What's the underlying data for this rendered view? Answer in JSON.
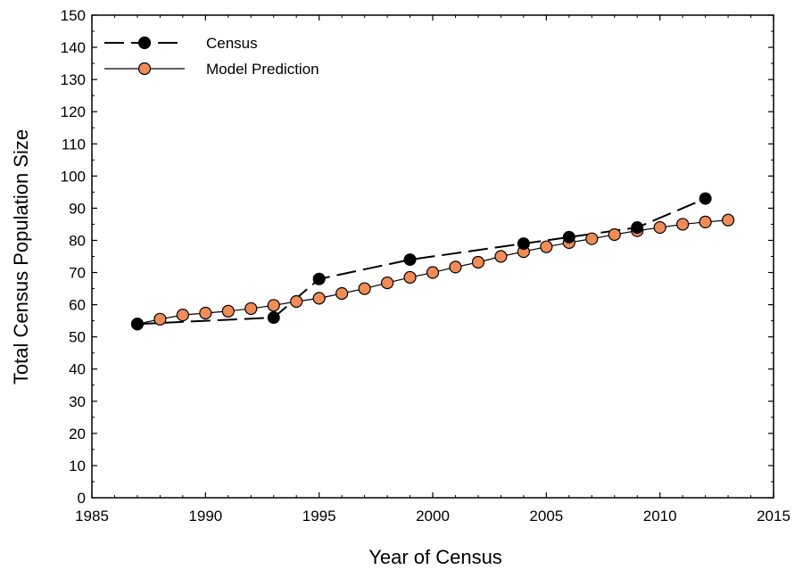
{
  "chart_data": {
    "type": "line",
    "xlabel": "Year of Census",
    "ylabel": "Total Census Population Size",
    "xlim": [
      1985,
      2015
    ],
    "ylim": [
      0,
      150
    ],
    "x_ticks": [
      1985,
      1990,
      1995,
      2000,
      2005,
      2010,
      2015
    ],
    "y_ticks": [
      0,
      10,
      20,
      30,
      40,
      50,
      60,
      70,
      80,
      90,
      100,
      110,
      120,
      130,
      140,
      150
    ],
    "grid": false,
    "legend_position": "top-left",
    "series": [
      {
        "name": "Census",
        "line_style": "long-dash",
        "marker": "filled-circle",
        "color": "#000000",
        "x": [
          1987,
          1993,
          1995,
          1999,
          2004,
          2006,
          2009,
          2012
        ],
        "y": [
          54,
          56,
          68,
          74,
          79,
          81,
          84,
          93
        ]
      },
      {
        "name": "Model Prediction",
        "line_style": "solid",
        "marker": "circle",
        "color": "#000000",
        "marker_fill": "#f08c58",
        "x": [
          1987,
          1988,
          1989,
          1990,
          1991,
          1992,
          1993,
          1994,
          1995,
          1996,
          1997,
          1998,
          1999,
          2000,
          2001,
          2002,
          2003,
          2004,
          2005,
          2006,
          2007,
          2008,
          2009,
          2010,
          2011,
          2012,
          2013
        ],
        "y": [
          54,
          55.5,
          56.8,
          57.4,
          58,
          58.8,
          59.8,
          61,
          62,
          63.5,
          65,
          66.8,
          68.5,
          70,
          71.7,
          73.2,
          75,
          76.5,
          78,
          79.3,
          80.5,
          81.8,
          83,
          84,
          85,
          85.7,
          86.3
        ]
      }
    ]
  }
}
